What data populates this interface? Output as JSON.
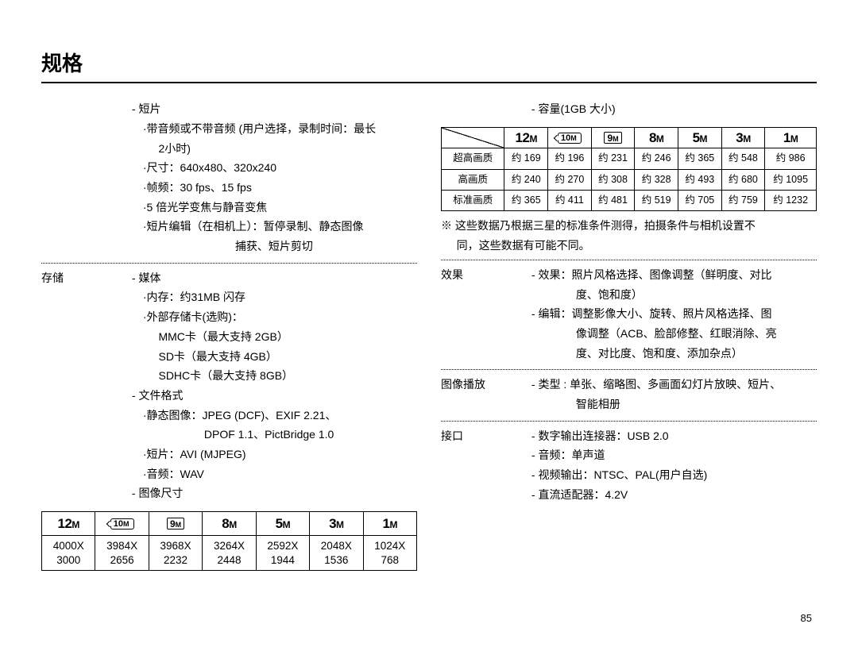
{
  "page": {
    "title": "规格",
    "number": "85"
  },
  "left": {
    "clip": {
      "header": "- 短片",
      "lines": [
        "·带音频或不带音频 (用户选择，录制时间：最长",
        "2小时)",
        "·尺寸：640x480、320x240",
        "·帧频：30 fps、15 fps",
        "·5 倍光学变焦与静音变焦",
        "·短片编辑（在相机上）：暂停录制、静态图像"
      ],
      "lastCentered": "捕获、短片剪切"
    },
    "storage": {
      "label": "存储",
      "header": "- 媒体",
      "lines": [
        "·内存：约31MB 闪存",
        "·外部存储卡(选购)：",
        "MMC卡（最大支持 2GB）",
        "SD卡（最大支持 4GB）",
        "SDHC卡（最大支持 8GB）"
      ],
      "header2": "- 文件格式",
      "lines2": [
        "·静态图像：JPEG (DCF)、EXIF 2.21、",
        "DPOF 1.1、PictBridge 1.0",
        "·短片：AVI (MJPEG)",
        "·音频：WAV"
      ],
      "header3": "- 图像尺寸"
    },
    "sizeTable": {
      "icons": [
        "12M",
        "10M",
        "9M",
        "8M",
        "5M",
        "3M",
        "1M"
      ],
      "iconKind": [
        "plain",
        "pano",
        "box",
        "plain",
        "plain",
        "plain",
        "plain"
      ],
      "row": [
        "4000X\n3000",
        "3984X\n2656",
        "3968X\n2232",
        "3264X\n2448",
        "2592X\n1944",
        "2048X\n1536",
        "1024X\n768"
      ]
    }
  },
  "right": {
    "capHeader": "- 容量(1GB 大小)",
    "capTable": {
      "icons": [
        "12M",
        "10M",
        "9M",
        "8M",
        "5M",
        "3M",
        "1M"
      ],
      "iconKind": [
        "plain",
        "pano",
        "box",
        "plain",
        "plain",
        "plain",
        "plain"
      ],
      "rowLabels": [
        "超高画质",
        "高画质",
        "标准画质"
      ],
      "rows": [
        [
          "约 169",
          "约 196",
          "约 231",
          "约 246",
          "约 365",
          "约 548",
          "约 986"
        ],
        [
          "约 240",
          "约 270",
          "约 308",
          "约 328",
          "约 493",
          "约 680",
          "约 1095"
        ],
        [
          "约 365",
          "约 411",
          "约 481",
          "约 519",
          "约 705",
          "约 759",
          "约 1232"
        ]
      ]
    },
    "note": [
      "※ 这些数据乃根据三星的标准条件测得，拍摄条件与相机设置不",
      "同，这些数据有可能不同。"
    ],
    "effect": {
      "label": "效果",
      "lines": [
        "- 效果：照片风格选择、图像调整（鲜明度、对比",
        "度、饱和度）",
        "- 编辑：调整影像大小、旋转、照片风格选择、图",
        "像调整（ACB、脸部修整、红眼消除、亮",
        "度、对比度、饱和度、添加杂点）"
      ]
    },
    "playback": {
      "label": "图像播放",
      "lines": [
        "- 类型 : 单张、缩略图、多画面幻灯片放映、短片、",
        "智能相册"
      ]
    },
    "interface": {
      "label": "接口",
      "lines": [
        "- 数字输出连接器：USB 2.0",
        "- 音频：单声道",
        "- 视频输出：NTSC、PAL(用户自选)",
        "- 直流适配器：4.2V"
      ]
    }
  }
}
